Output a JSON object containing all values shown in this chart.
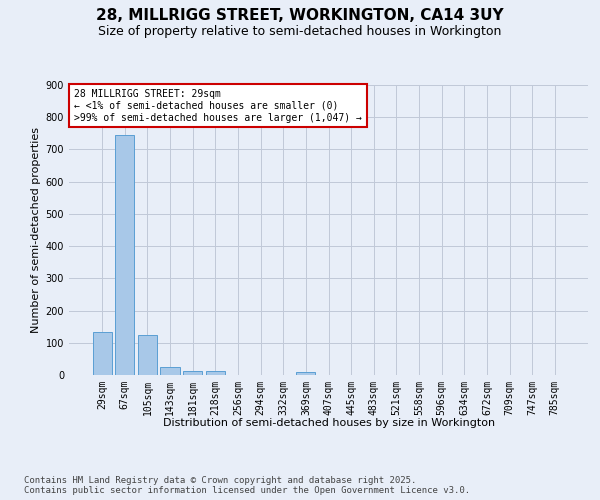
{
  "title": "28, MILLRIGG STREET, WORKINGTON, CA14 3UY",
  "subtitle": "Size of property relative to semi-detached houses in Workington",
  "xlabel": "Distribution of semi-detached houses by size in Workington",
  "ylabel": "Number of semi-detached properties",
  "categories": [
    "29sqm",
    "67sqm",
    "105sqm",
    "143sqm",
    "181sqm",
    "218sqm",
    "256sqm",
    "294sqm",
    "332sqm",
    "369sqm",
    "407sqm",
    "445sqm",
    "483sqm",
    "521sqm",
    "558sqm",
    "596sqm",
    "634sqm",
    "672sqm",
    "709sqm",
    "747sqm",
    "785sqm"
  ],
  "values": [
    133,
    744,
    124,
    26,
    13,
    12,
    0,
    0,
    0,
    8,
    0,
    0,
    0,
    0,
    0,
    0,
    0,
    0,
    0,
    0,
    0
  ],
  "bar_color": "#a8c8e8",
  "bar_edge_color": "#5a9fd4",
  "annotation_text": "28 MILLRIGG STREET: 29sqm\n← <1% of semi-detached houses are smaller (0)\n>99% of semi-detached houses are larger (1,047) →",
  "annotation_box_color": "#ffffff",
  "annotation_box_edge": "#cc0000",
  "ylim": [
    0,
    900
  ],
  "yticks": [
    0,
    100,
    200,
    300,
    400,
    500,
    600,
    700,
    800,
    900
  ],
  "footer": "Contains HM Land Registry data © Crown copyright and database right 2025.\nContains public sector information licensed under the Open Government Licence v3.0.",
  "bg_color": "#e8eef8",
  "plot_bg_color": "#e8eef8",
  "grid_color": "#c0c8d8",
  "title_fontsize": 11,
  "subtitle_fontsize": 9,
  "axis_label_fontsize": 8,
  "tick_fontsize": 7,
  "footer_fontsize": 6.5
}
